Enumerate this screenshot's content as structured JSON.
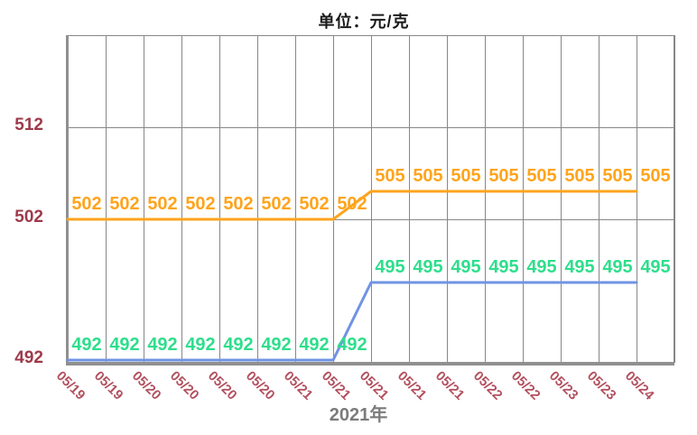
{
  "header": {
    "unit_title": "单位：元/克"
  },
  "footer": {
    "year_label": "2021年"
  },
  "colors": {
    "title": "#1A1A1A",
    "x_axis_title": "#7B7B7B",
    "grid": "#878787",
    "spine": "#909090",
    "y_tick_label": "#9E3A4A",
    "x_tick_label": "#B2505F",
    "upper_line": "#FFA41C",
    "upper_label": "#FFA41C",
    "lower_line": "#6F93E4",
    "lower_label": "#2EDE8C"
  },
  "chart_data": {
    "type": "line",
    "title": "单位：元/克",
    "xlabel": "2021年",
    "ylabel": "",
    "categories": [
      "05/19",
      "05/19",
      "05/20",
      "05/20",
      "05/20",
      "05/20",
      "05/21",
      "05/21",
      "05/21",
      "05/21",
      "05/21",
      "05/22",
      "05/22",
      "05/23",
      "05/23",
      "05/24"
    ],
    "series": [
      {
        "name": "upper-price-line",
        "color": "#FFA41C",
        "label_color": "#FFA41C",
        "values": [
          502,
          502,
          502,
          502,
          502,
          502,
          502,
          502,
          505,
          505,
          505,
          505,
          505,
          505,
          505,
          505
        ]
      },
      {
        "name": "lower-price-line",
        "color": "#6F93E4",
        "label_color": "#2EDE8C",
        "values": [
          492,
          492,
          492,
          492,
          492,
          492,
          492,
          492,
          495,
          495,
          495,
          495,
          495,
          495,
          495,
          495
        ]
      }
    ],
    "y_ticks": [
      "512",
      "502",
      "492"
    ],
    "ylim": [
      492,
      522
    ],
    "grid": true,
    "legend_position": "none",
    "point_labels_visible": true
  }
}
